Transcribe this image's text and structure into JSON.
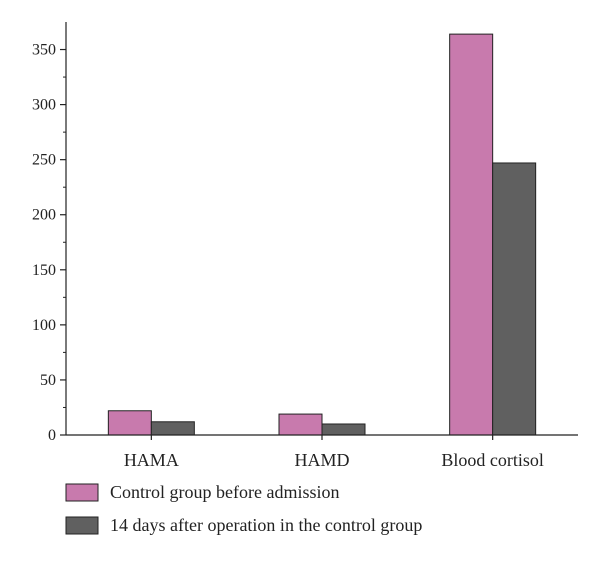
{
  "chart_data": {
    "type": "bar",
    "categories": [
      "HAMA",
      "HAMD",
      "Blood cortisol"
    ],
    "series": [
      {
        "name": "Control group before admission",
        "values": [
          22,
          19,
          364
        ],
        "color": "#c87aad"
      },
      {
        "name": "14 days after operation in the control group",
        "values": [
          12,
          10,
          247
        ],
        "color": "#606060"
      }
    ],
    "yticks": [
      0,
      50,
      100,
      150,
      200,
      250,
      300,
      350
    ],
    "ylim": [
      0,
      375
    ],
    "title": "",
    "xlabel": "",
    "ylabel": "",
    "grid": false,
    "legend_position": "bottom"
  }
}
